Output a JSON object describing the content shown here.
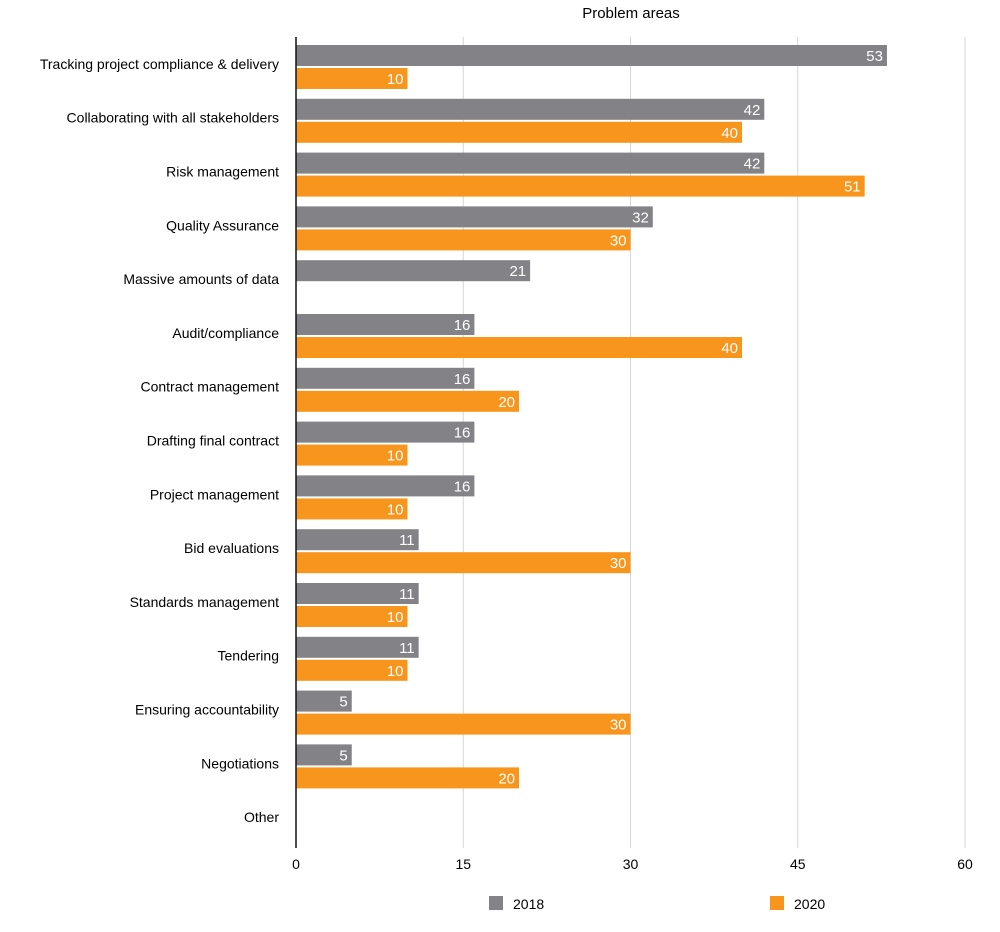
{
  "chart_data": {
    "type": "bar",
    "orientation": "horizontal",
    "title": "Problem areas",
    "xlabel": "",
    "ylabel": "",
    "xlim": [
      0,
      60
    ],
    "x_ticks": [
      "0",
      "15",
      "30",
      "45",
      "60"
    ],
    "grid": true,
    "legend_position": "bottom",
    "categories": [
      "Tracking project compliance & delivery",
      "Collaborating with all stakeholders",
      "Risk management",
      "Quality Assurance",
      "Massive amounts of data",
      "Audit/compliance",
      "Contract management",
      "Drafting final contract",
      "Project management",
      "Bid evaluations",
      "Standards management",
      "Tendering",
      "Ensuring accountability",
      "Negotiations",
      "Other"
    ],
    "series": [
      {
        "name": "2018",
        "color": "#838387",
        "values": [
          53,
          42,
          42,
          32,
          21,
          16,
          16,
          16,
          16,
          11,
          11,
          11,
          5,
          5,
          null
        ]
      },
      {
        "name": "2020",
        "color": "#F7951D",
        "values": [
          10,
          40,
          51,
          30,
          null,
          40,
          20,
          10,
          10,
          30,
          10,
          10,
          30,
          20,
          null
        ]
      }
    ]
  }
}
